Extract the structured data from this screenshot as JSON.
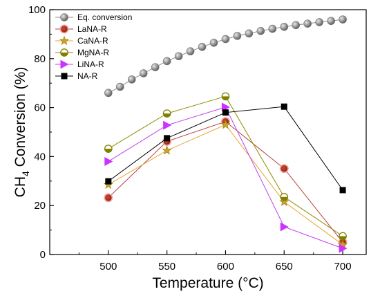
{
  "chart_data": {
    "type": "line",
    "xlabel": "Temperature (°C)",
    "ylabel_main": "CH",
    "ylabel_sub": "4",
    "ylabel_rest": " Conversion (%)",
    "xlim": [
      450,
      720
    ],
    "ylim": [
      0,
      100
    ],
    "x_ticks": [
      500,
      550,
      600,
      650,
      700
    ],
    "y_ticks": [
      0,
      20,
      40,
      60,
      80,
      100
    ],
    "grid": false,
    "legend_position": "top-left",
    "eq_conversion": {
      "name": "Eq. conversion",
      "x": [
        500,
        510,
        520,
        530,
        540,
        550,
        560,
        570,
        580,
        590,
        600,
        610,
        620,
        630,
        640,
        650,
        660,
        670,
        680,
        690,
        700
      ],
      "y": [
        66.0,
        68.5,
        71.5,
        74.0,
        76.5,
        79.0,
        81.0,
        83.0,
        84.8,
        86.5,
        88.0,
        89.3,
        90.3,
        91.3,
        92.2,
        93.0,
        93.7,
        94.3,
        94.9,
        95.4,
        96.0
      ]
    },
    "series": [
      {
        "name": "LaNA-R",
        "x": [
          500,
          550,
          600,
          650,
          700
        ],
        "y": [
          23.2,
          46.2,
          54.3,
          35.1,
          5.0
        ]
      },
      {
        "name": "CaNA-R",
        "x": [
          500,
          550,
          600,
          650,
          700
        ],
        "y": [
          28.5,
          42.5,
          53.0,
          21.5,
          4.0
        ]
      },
      {
        "name": "MgNA-R",
        "x": [
          500,
          550,
          600,
          650,
          700
        ],
        "y": [
          43.2,
          57.6,
          64.6,
          23.5,
          7.5
        ]
      },
      {
        "name": "LiNA-R",
        "x": [
          500,
          550,
          600,
          650,
          700
        ],
        "y": [
          38.0,
          52.8,
          60.2,
          11.3,
          2.5
        ]
      },
      {
        "name": "NA-R",
        "x": [
          500,
          550,
          600,
          650,
          700
        ],
        "y": [
          29.9,
          47.5,
          58.0,
          60.4,
          26.3
        ]
      }
    ],
    "styles": {
      "eq_conversion": {
        "line": "#8c8c8c",
        "fill": "#a6a6a6",
        "marker": "sphere"
      },
      "LaNA-R": {
        "line": "#b8403a",
        "fill": "#b8341f",
        "edge": "#f4a8a8",
        "marker": "circle"
      },
      "CaNA-R": {
        "line": "#e6a52e",
        "fill": "#c9a227",
        "marker": "star"
      },
      "MgNA-R": {
        "line": "#8c8c00",
        "fill": "#808000",
        "marker": "half-circle"
      },
      "LiNA-R": {
        "line": "#c040f0",
        "fill": "#cc33ff",
        "marker": "triangle-right"
      },
      "NA-R": {
        "line": "#000000",
        "fill": "#000000",
        "marker": "square"
      }
    }
  }
}
